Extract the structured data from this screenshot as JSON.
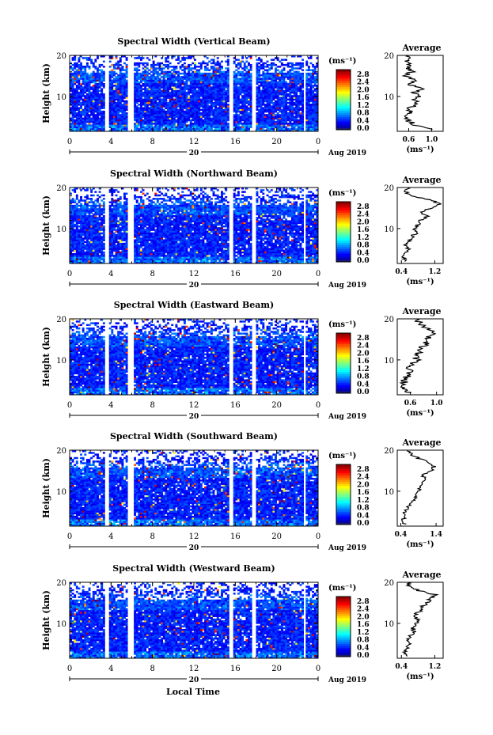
{
  "footer_label": "Local Time",
  "chart_data": [
    {
      "type": "heatmap",
      "title": "Spectral Width (Vertical Beam)",
      "ylabel": "Height (km)",
      "xlabel": "Local Time",
      "x_ticks": [
        "0",
        "4",
        "8",
        "12",
        "16",
        "20",
        "0"
      ],
      "y_ticks": [
        "20",
        "10"
      ],
      "date_day": "20",
      "date_label": "Aug 2019",
      "xlim": [
        0,
        24
      ],
      "ylim": [
        1.5,
        20
      ],
      "colorbar": {
        "unit": "(ms⁻¹)",
        "ticks": [
          "2.8",
          "2.4",
          "2.0",
          "1.6",
          "1.2",
          "0.8",
          "0.4",
          "0.0"
        ],
        "range": [
          0,
          2.8
        ]
      },
      "data_gaps_hours": [
        [
          3.4,
          3.8
        ],
        [
          5.6,
          6.2
        ],
        [
          15.3,
          15.7
        ],
        [
          17.6,
          17.9
        ],
        [
          22.7,
          22.9
        ]
      ],
      "average": {
        "title": "Average",
        "xlabel": "(ms⁻¹)",
        "x_ticks": [
          "0.6",
          "1.0"
        ],
        "xlim": [
          0.4,
          1.2
        ],
        "heights_km": [
          2,
          3,
          4,
          5,
          6,
          7,
          8,
          9,
          10,
          11,
          12,
          13,
          14,
          15,
          16,
          17,
          18,
          19,
          20
        ],
        "values": [
          1.05,
          0.72,
          0.6,
          0.55,
          0.65,
          0.6,
          0.75,
          0.7,
          0.8,
          0.7,
          0.85,
          0.6,
          0.7,
          0.55,
          0.65,
          0.6,
          0.58,
          0.55,
          0.6
        ]
      }
    },
    {
      "type": "heatmap",
      "title": "Spectral Width (Northward Beam)",
      "ylabel": "Height (km)",
      "xlabel": "Local Time",
      "x_ticks": [
        "0",
        "4",
        "8",
        "12",
        "16",
        "20",
        "0"
      ],
      "y_ticks": [
        "20",
        "10"
      ],
      "date_day": "20",
      "date_label": "Aug 2019",
      "xlim": [
        0,
        24
      ],
      "ylim": [
        1.5,
        20
      ],
      "colorbar": {
        "unit": "(ms⁻¹)",
        "ticks": [
          "2.8",
          "2.4",
          "2.0",
          "1.6",
          "1.2",
          "0.8",
          "0.4",
          "0.0"
        ],
        "range": [
          0,
          2.8
        ]
      },
      "data_gaps_hours": [
        [
          3.4,
          3.8
        ],
        [
          5.6,
          6.2
        ],
        [
          15.3,
          15.7
        ],
        [
          17.6,
          17.9
        ],
        [
          22.7,
          22.9
        ]
      ],
      "average": {
        "title": "Average",
        "xlabel": "(ms⁻¹)",
        "x_ticks": [
          "0.4",
          "1.2"
        ],
        "xlim": [
          0.3,
          1.4
        ],
        "heights_km": [
          2,
          3,
          4,
          5,
          6,
          7,
          8,
          9,
          10,
          11,
          12,
          13,
          14,
          15,
          16,
          17,
          18,
          19,
          20
        ],
        "values": [
          0.5,
          0.45,
          0.5,
          0.55,
          0.5,
          0.6,
          0.65,
          0.75,
          0.7,
          0.8,
          0.85,
          1.0,
          0.9,
          1.1,
          1.3,
          1.1,
          0.6,
          0.5,
          0.55
        ]
      }
    },
    {
      "type": "heatmap",
      "title": "Spectral Width (Eastward Beam)",
      "ylabel": "Height (km)",
      "xlabel": "Local Time",
      "x_ticks": [
        "0",
        "4",
        "8",
        "12",
        "16",
        "20",
        "0"
      ],
      "y_ticks": [
        "20",
        "10"
      ],
      "date_day": "20",
      "date_label": "Aug 2019",
      "xlim": [
        0,
        24
      ],
      "ylim": [
        1.5,
        20
      ],
      "colorbar": {
        "unit": "(ms⁻¹)",
        "ticks": [
          "2.8",
          "2.4",
          "2.0",
          "1.6",
          "1.2",
          "0.8",
          "0.4",
          "0.0"
        ],
        "range": [
          0,
          2.8
        ]
      },
      "data_gaps_hours": [
        [
          3.4,
          3.8
        ],
        [
          5.6,
          6.2
        ],
        [
          15.3,
          15.7
        ],
        [
          17.6,
          17.9
        ],
        [
          22.7,
          22.9
        ]
      ],
      "average": {
        "title": "Average",
        "xlabel": "(ms⁻¹)",
        "x_ticks": [
          "0.6",
          "1.0"
        ],
        "xlim": [
          0.4,
          1.1
        ],
        "heights_km": [
          2,
          3,
          4,
          5,
          6,
          7,
          8,
          9,
          10,
          11,
          12,
          13,
          14,
          15,
          16,
          17,
          18,
          19,
          20
        ],
        "values": [
          0.6,
          0.5,
          0.48,
          0.52,
          0.55,
          0.6,
          0.58,
          0.62,
          0.7,
          0.68,
          0.75,
          0.78,
          0.85,
          0.8,
          0.95,
          0.9,
          0.8,
          0.75,
          0.7
        ]
      }
    },
    {
      "type": "heatmap",
      "title": "Spectral Width (Southward Beam)",
      "ylabel": "Height (km)",
      "xlabel": "Local Time",
      "x_ticks": [
        "0",
        "4",
        "8",
        "12",
        "16",
        "20",
        "0"
      ],
      "y_ticks": [
        "20",
        "10"
      ],
      "date_day": "20",
      "date_label": "Aug 2019",
      "xlim": [
        0,
        24
      ],
      "ylim": [
        1.5,
        20
      ],
      "colorbar": {
        "unit": "(ms⁻¹)",
        "ticks": [
          "2.8",
          "2.4",
          "2.0",
          "1.6",
          "1.2",
          "0.8",
          "0.4",
          "0.0"
        ],
        "range": [
          0,
          2.8
        ]
      },
      "data_gaps_hours": [
        [
          3.4,
          3.8
        ],
        [
          5.6,
          6.2
        ],
        [
          15.3,
          15.7
        ],
        [
          17.6,
          17.9
        ],
        [
          22.7,
          22.9
        ]
      ],
      "average": {
        "title": "Average",
        "xlabel": "(ms⁻¹)",
        "x_ticks": [
          "0.4",
          "1.4"
        ],
        "xlim": [
          0.3,
          1.6
        ],
        "heights_km": [
          2,
          3,
          4,
          5,
          6,
          7,
          8,
          9,
          10,
          11,
          12,
          13,
          14,
          15,
          16,
          17,
          18,
          19,
          20
        ],
        "values": [
          0.5,
          0.45,
          0.55,
          0.5,
          0.6,
          0.7,
          0.8,
          0.85,
          0.9,
          0.95,
          1.05,
          1.1,
          1.0,
          1.25,
          1.35,
          1.2,
          0.9,
          0.7,
          0.6
        ]
      }
    },
    {
      "type": "heatmap",
      "title": "Spectral Width (Westward Beam)",
      "ylabel": "Height (km)",
      "xlabel": "Local Time",
      "x_ticks": [
        "0",
        "4",
        "8",
        "12",
        "16",
        "20",
        "0"
      ],
      "y_ticks": [
        "20",
        "10"
      ],
      "date_day": "20",
      "date_label": "Aug 2019",
      "xlim": [
        0,
        24
      ],
      "ylim": [
        1.5,
        20
      ],
      "colorbar": {
        "unit": "(ms⁻¹)",
        "ticks": [
          "2.8",
          "2.4",
          "2.0",
          "1.6",
          "1.2",
          "0.8",
          "0.4",
          "0.0"
        ],
        "range": [
          0,
          2.8
        ]
      },
      "data_gaps_hours": [
        [
          3.4,
          3.8
        ],
        [
          5.6,
          6.2
        ],
        [
          15.3,
          15.7
        ],
        [
          17.6,
          17.9
        ],
        [
          22.7,
          22.9
        ]
      ],
      "average": {
        "title": "Average",
        "xlabel": "(ms⁻¹)",
        "x_ticks": [
          "0.4",
          "1.2"
        ],
        "xlim": [
          0.3,
          1.4
        ],
        "heights_km": [
          2,
          3,
          4,
          5,
          6,
          7,
          8,
          9,
          10,
          11,
          12,
          13,
          14,
          15,
          16,
          17,
          18,
          19,
          20
        ],
        "values": [
          0.55,
          0.5,
          0.52,
          0.6,
          0.55,
          0.62,
          0.7,
          0.68,
          0.75,
          0.8,
          0.72,
          0.85,
          0.9,
          1.0,
          1.1,
          1.2,
          0.8,
          0.6,
          0.55
        ]
      }
    }
  ]
}
